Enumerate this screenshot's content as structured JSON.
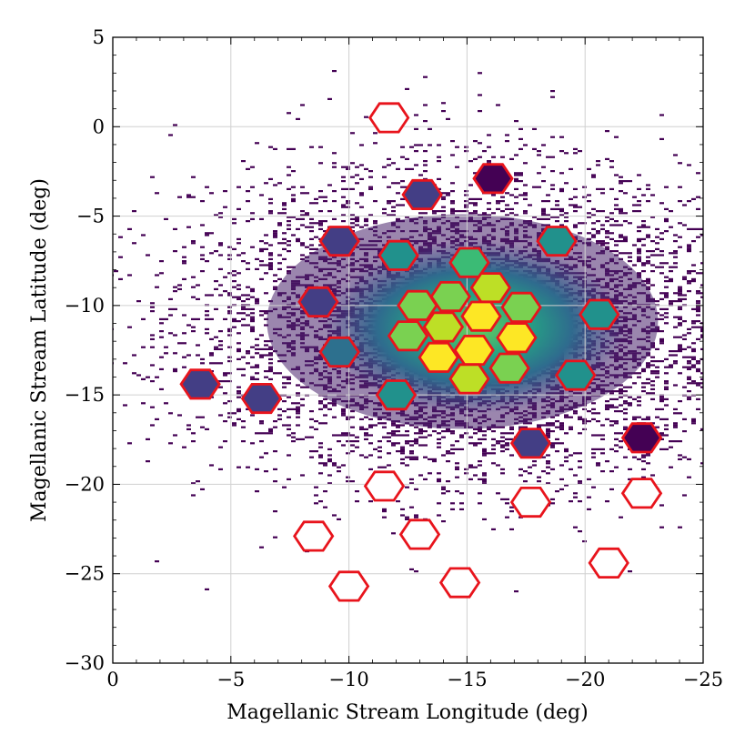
{
  "chart_data": {
    "type": "scatter",
    "title": "",
    "xlabel": "Magellanic Stream Longitude (deg)",
    "ylabel": "Magellanic Stream Latitude (deg)",
    "xlim": [
      0,
      -25
    ],
    "ylim": [
      -30,
      5
    ],
    "grid": true,
    "x_ticks": [
      0,
      -5,
      -10,
      -15,
      -20,
      -25
    ],
    "y_ticks": [
      5,
      0,
      -5,
      -10,
      -15,
      -20,
      -25,
      -30
    ],
    "x_tick_labels": [
      "0",
      "−5",
      "−10",
      "−15",
      "−20",
      "−25"
    ],
    "y_tick_labels": [
      "5",
      "0",
      "−5",
      "−10",
      "−15",
      "−20",
      "−25",
      "−30"
    ],
    "background_density": {
      "description": "2D histogram of stellar source counts",
      "colormap": "viridis",
      "peak_center": [
        -15.0,
        -11.0
      ],
      "extent_x": [
        0.0,
        -25.0
      ],
      "extent_y": [
        -27.0,
        0.0
      ]
    },
    "fields": {
      "outline_color": "#e8141c",
      "colormap": [
        "#440154",
        "#433e85",
        "#2d708e",
        "#21918c",
        "#3bbb75",
        "#7ad151",
        "#bddf26",
        "#fde725"
      ],
      "items": [
        {
          "x": -11.7,
          "y": 0.5,
          "level": null
        },
        {
          "x": -16.1,
          "y": -2.9,
          "level": 0.0
        },
        {
          "x": -13.1,
          "y": -3.8,
          "level": 0.12
        },
        {
          "x": -9.6,
          "y": -6.4,
          "level": 0.13
        },
        {
          "x": -12.1,
          "y": -7.2,
          "level": 0.38
        },
        {
          "x": -18.8,
          "y": -6.4,
          "level": 0.38
        },
        {
          "x": -15.1,
          "y": -7.6,
          "level": 0.6
        },
        {
          "x": -8.7,
          "y": -9.8,
          "level": 0.2
        },
        {
          "x": -14.3,
          "y": -9.5,
          "level": 0.75
        },
        {
          "x": -16.0,
          "y": -9.0,
          "level": 0.8
        },
        {
          "x": -12.9,
          "y": -10.0,
          "level": 0.72
        },
        {
          "x": -17.3,
          "y": -10.1,
          "level": 0.75
        },
        {
          "x": -20.6,
          "y": -10.5,
          "level": 0.4
        },
        {
          "x": -12.5,
          "y": -11.7,
          "level": 0.72
        },
        {
          "x": -14.0,
          "y": -11.2,
          "level": 0.92
        },
        {
          "x": -15.6,
          "y": -10.6,
          "level": 0.93
        },
        {
          "x": -17.1,
          "y": -11.8,
          "level": 0.95
        },
        {
          "x": -9.6,
          "y": -12.6,
          "level": 0.35
        },
        {
          "x": -13.8,
          "y": -12.9,
          "level": 0.95
        },
        {
          "x": -15.3,
          "y": -12.5,
          "level": 0.95
        },
        {
          "x": -16.8,
          "y": -13.5,
          "level": 0.78
        },
        {
          "x": -15.1,
          "y": -14.1,
          "level": 0.92
        },
        {
          "x": -19.6,
          "y": -13.9,
          "level": 0.38
        },
        {
          "x": -3.7,
          "y": -14.4,
          "level": 0.12
        },
        {
          "x": -6.3,
          "y": -15.2,
          "level": 0.12
        },
        {
          "x": -12.0,
          "y": -15.0,
          "level": 0.38
        },
        {
          "x": -17.7,
          "y": -17.7,
          "level": 0.1
        },
        {
          "x": -22.4,
          "y": -17.4,
          "level": 0.0
        },
        {
          "x": -11.5,
          "y": -20.1,
          "level": null
        },
        {
          "x": -17.7,
          "y": -21.0,
          "level": null
        },
        {
          "x": -22.4,
          "y": -20.5,
          "level": null
        },
        {
          "x": -8.5,
          "y": -22.9,
          "level": null
        },
        {
          "x": -13.0,
          "y": -22.8,
          "level": null
        },
        {
          "x": -21.0,
          "y": -24.4,
          "level": null
        },
        {
          "x": -10.0,
          "y": -25.7,
          "level": null
        },
        {
          "x": -14.7,
          "y": -25.5,
          "level": null
        }
      ]
    }
  }
}
